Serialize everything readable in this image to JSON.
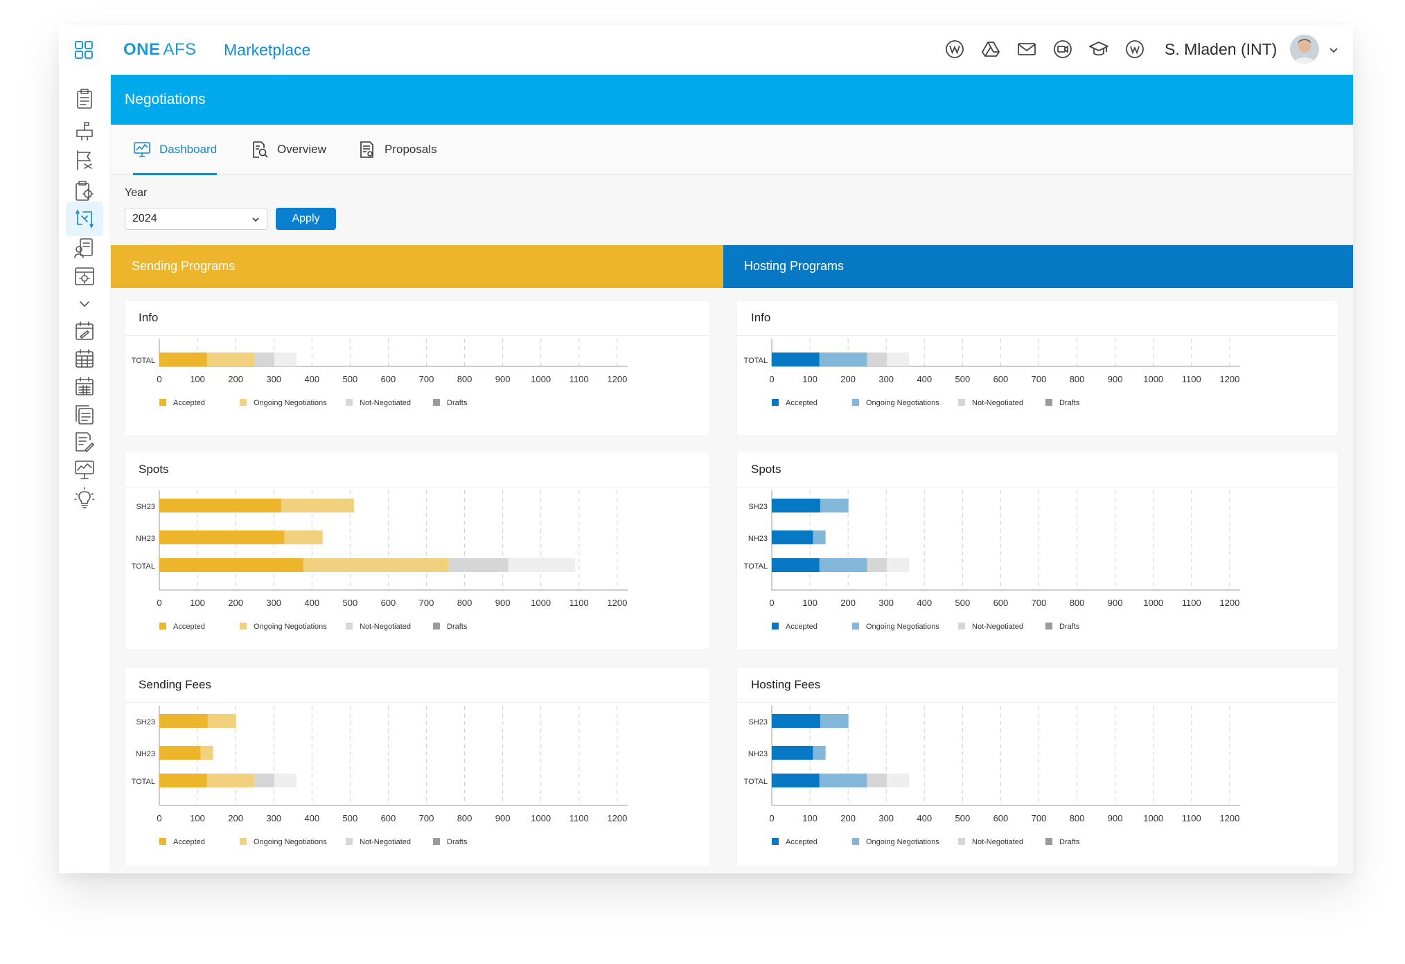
{
  "app": {
    "brand_one": "ONE",
    "brand_afs": "AFS",
    "product": "Marketplace",
    "user_name": "S. Mladen (INT)"
  },
  "top_icons": [
    "wikipedia-icon",
    "google-drive-icon",
    "mail-icon",
    "video-call-icon",
    "graduation-cap-icon",
    "workplace-icon"
  ],
  "sidebar_icons": [
    "clipboard-icon",
    "mailbox-icon",
    "flag-icon",
    "settings-clipboard-icon",
    "negotiations-icon",
    "user-document-icon",
    "settings-window-icon",
    "chevron-down-icon",
    "calendar-edit-icon",
    "calendar-grid-icon",
    "calendar-table-icon",
    "documents-stack-icon",
    "edit-document-icon",
    "monitor-chart-icon",
    "lightbulb-icon"
  ],
  "page": {
    "title": "Negotiations",
    "tabs": [
      {
        "label": "Dashboard",
        "icon": "dashboard-monitor-icon",
        "active": true
      },
      {
        "label": "Overview",
        "icon": "document-search-icon",
        "active": false
      },
      {
        "label": "Proposals",
        "icon": "proposal-document-icon",
        "active": false
      }
    ],
    "filter": {
      "year_label": "Year",
      "year_value": "2024",
      "apply_label": "Apply"
    }
  },
  "sections": {
    "sending": "Sending Programs",
    "hosting": "Hosting Programs"
  },
  "colors": {
    "sending": [
      "#ecb52c",
      "#f1d07e",
      "#d6d6d6",
      "#eeeeee"
    ],
    "hosting": [
      "#0678c4",
      "#83b7da",
      "#d6d6d6",
      "#eeeeee"
    ],
    "legend_swatches": {
      "sending": [
        "#ecb52c",
        "#f1d07e",
        "#d6d6d6",
        "#9a9a9a"
      ],
      "hosting": [
        "#0678c4",
        "#83b7da",
        "#d6d6d6",
        "#9a9a9a"
      ]
    }
  },
  "chart_data": [
    {
      "id": "sending-info",
      "title": "Info",
      "type": "bar",
      "orientation": "horizontal",
      "stacked": true,
      "categories": [
        "TOTAL"
      ],
      "series": [
        {
          "name": "Accepted",
          "values": [
            125
          ]
        },
        {
          "name": "Ongoing Negotiations",
          "values": [
            125
          ]
        },
        {
          "name": "Not-Negotiated",
          "values": [
            52
          ]
        },
        {
          "name": "Drafts",
          "values": [
            58
          ]
        }
      ],
      "xticks": [
        "0",
        "100",
        "200",
        "300",
        "400",
        "500",
        "600",
        "700",
        "800",
        "900",
        "1000",
        "1100",
        "1200"
      ],
      "xlim": [
        0,
        1200
      ],
      "grid": true,
      "legend": "bottom"
    },
    {
      "id": "hosting-info",
      "title": "Info",
      "type": "bar",
      "orientation": "horizontal",
      "stacked": true,
      "categories": [
        "TOTAL"
      ],
      "series": [
        {
          "name": "Accepted",
          "values": [
            125
          ]
        },
        {
          "name": "Ongoing Negotiations",
          "values": [
            125
          ]
        },
        {
          "name": "Not-Negotiated",
          "values": [
            52
          ]
        },
        {
          "name": "Drafts",
          "values": [
            58
          ]
        }
      ],
      "xticks": [
        "0",
        "100",
        "200",
        "300",
        "400",
        "500",
        "600",
        "700",
        "800",
        "900",
        "1000",
        "1100",
        "1200"
      ],
      "xlim": [
        0,
        1200
      ],
      "grid": true,
      "legend": "bottom"
    },
    {
      "id": "sending-spots",
      "title": "Spots",
      "type": "bar",
      "orientation": "horizontal",
      "stacked": true,
      "categories": [
        "SH23",
        "NH23",
        "TOTAL"
      ],
      "series": [
        {
          "name": "Accepted",
          "values": [
            320,
            328,
            378
          ]
        },
        {
          "name": "Ongoing Negotiations",
          "values": [
            190,
            100,
            380
          ]
        },
        {
          "name": "Not-Negotiated",
          "values": [
            0,
            0,
            157
          ]
        },
        {
          "name": "Drafts",
          "values": [
            0,
            0,
            175
          ]
        }
      ],
      "xticks": [
        "0",
        "100",
        "200",
        "300",
        "400",
        "500",
        "600",
        "700",
        "800",
        "900",
        "1000",
        "1100",
        "1200"
      ],
      "xlim": [
        0,
        1200
      ],
      "grid": true,
      "legend": "bottom"
    },
    {
      "id": "hosting-spots",
      "title": "Spots",
      "type": "bar",
      "orientation": "horizontal",
      "stacked": true,
      "categories": [
        "SH23",
        "NH23",
        "TOTAL"
      ],
      "series": [
        {
          "name": "Accepted",
          "values": [
            127,
            108,
            125
          ]
        },
        {
          "name": "Ongoing Negotiations",
          "values": [
            74,
            33,
            125
          ]
        },
        {
          "name": "Not-Negotiated",
          "values": [
            0,
            0,
            52
          ]
        },
        {
          "name": "Drafts",
          "values": [
            0,
            0,
            58
          ]
        }
      ],
      "xticks": [
        "0",
        "100",
        "200",
        "300",
        "400",
        "500",
        "600",
        "700",
        "800",
        "900",
        "1000",
        "1100",
        "1200"
      ],
      "xlim": [
        0,
        1200
      ],
      "grid": true,
      "legend": "bottom"
    },
    {
      "id": "sending-fees",
      "title": "Sending Fees",
      "type": "bar",
      "orientation": "horizontal",
      "stacked": true,
      "categories": [
        "SH23",
        "NH23",
        "TOTAL"
      ],
      "series": [
        {
          "name": "Accepted",
          "values": [
            127,
            108,
            125
          ]
        },
        {
          "name": "Ongoing Negotiations",
          "values": [
            74,
            33,
            125
          ]
        },
        {
          "name": "Not-Negotiated",
          "values": [
            0,
            0,
            52
          ]
        },
        {
          "name": "Drafts",
          "values": [
            0,
            0,
            58
          ]
        }
      ],
      "xticks": [
        "0",
        "100",
        "200",
        "300",
        "400",
        "500",
        "600",
        "700",
        "800",
        "900",
        "1000",
        "1100",
        "1200"
      ],
      "xlim": [
        0,
        1200
      ],
      "grid": true,
      "legend": "bottom"
    },
    {
      "id": "hosting-fees",
      "title": "Hosting Fees",
      "type": "bar",
      "orientation": "horizontal",
      "stacked": true,
      "categories": [
        "SH23",
        "NH23",
        "TOTAL"
      ],
      "series": [
        {
          "name": "Accepted",
          "values": [
            127,
            108,
            125
          ]
        },
        {
          "name": "Ongoing Negotiations",
          "values": [
            74,
            33,
            125
          ]
        },
        {
          "name": "Not-Negotiated",
          "values": [
            0,
            0,
            52
          ]
        },
        {
          "name": "Drafts",
          "values": [
            0,
            0,
            58
          ]
        }
      ],
      "xticks": [
        "0",
        "100",
        "200",
        "300",
        "400",
        "500",
        "600",
        "700",
        "800",
        "900",
        "1000",
        "1100",
        "1200"
      ],
      "xlim": [
        0,
        1200
      ],
      "grid": true,
      "legend": "bottom"
    }
  ]
}
